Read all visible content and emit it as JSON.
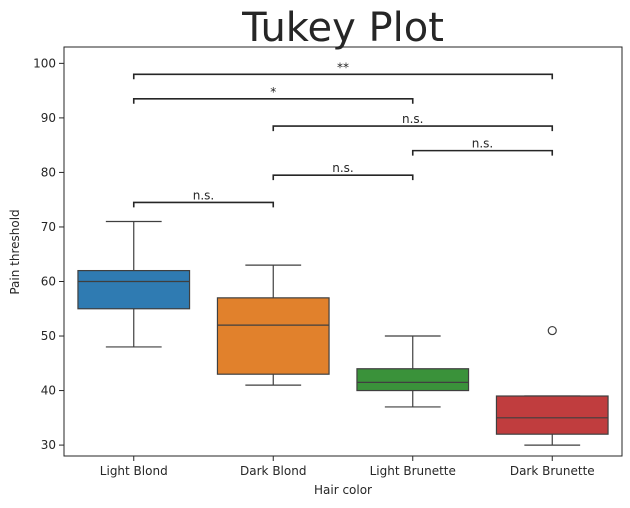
{
  "chart_data": {
    "type": "box",
    "title": "Tukey Plot",
    "xlabel": "Hair color",
    "ylabel": "Pain threshold",
    "categories": [
      "Light Blond",
      "Dark Blond",
      "Light Brunette",
      "Dark Brunette"
    ],
    "colors": [
      "#2f7bb2",
      "#e1812c",
      "#3a923a",
      "#c03d3e"
    ],
    "ylim": [
      28,
      103
    ],
    "yticks": [
      30,
      40,
      50,
      60,
      70,
      80,
      90,
      100
    ],
    "boxes": [
      {
        "whisker_low": 48,
        "q1": 55,
        "median": 60,
        "q3": 62,
        "whisker_high": 71,
        "outliers": []
      },
      {
        "whisker_low": 41,
        "q1": 43,
        "median": 52,
        "q3": 57,
        "whisker_high": 63,
        "outliers": []
      },
      {
        "whisker_low": 37,
        "q1": 40,
        "median": 41.5,
        "q3": 44,
        "whisker_high": 50,
        "outliers": []
      },
      {
        "whisker_low": 30,
        "q1": 32,
        "median": 35,
        "q3": 39,
        "whisker_high": 39,
        "outliers": [
          51
        ]
      }
    ],
    "comparisons": [
      {
        "from": "Light Blond",
        "to": "Dark Blond",
        "y": 74.5,
        "label": "n.s."
      },
      {
        "from": "Dark Blond",
        "to": "Light Brunette",
        "y": 79.5,
        "label": "n.s."
      },
      {
        "from": "Light Brunette",
        "to": "Dark Brunette",
        "y": 84,
        "label": "n.s."
      },
      {
        "from": "Dark Blond",
        "to": "Dark Brunette",
        "y": 88.5,
        "label": "n.s."
      },
      {
        "from": "Light Blond",
        "to": "Light Brunette",
        "y": 93.5,
        "label": "*"
      },
      {
        "from": "Light Blond",
        "to": "Dark Brunette",
        "y": 98,
        "label": "**"
      }
    ],
    "grid": false
  }
}
